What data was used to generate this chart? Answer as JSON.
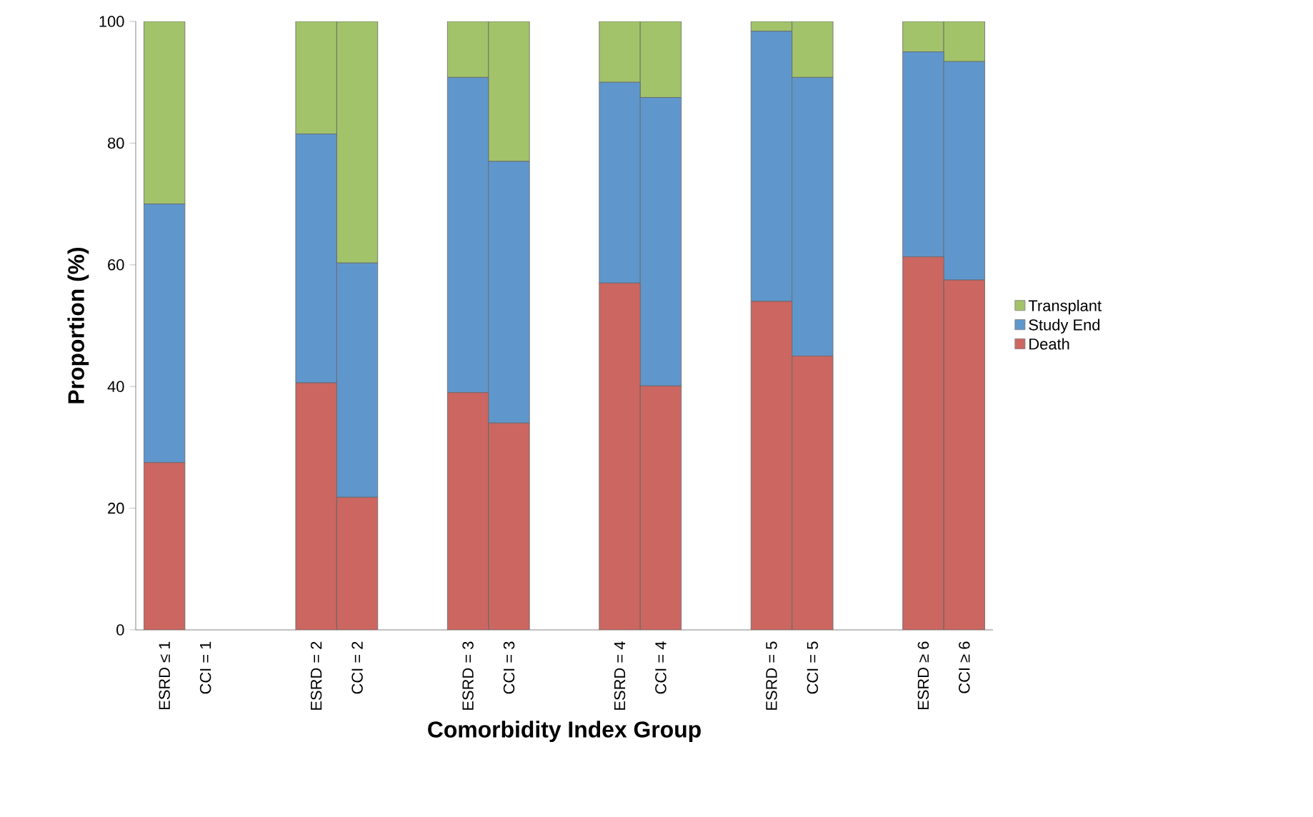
{
  "chart_data": {
    "type": "bar",
    "stacked": true,
    "xlabel": "Comorbidity Index Group",
    "ylabel": "Proportion (%)",
    "categories": [
      "ESRD ≤ 1",
      "CCI = 1",
      "ESRD = 2",
      "CCI = 2",
      "ESRD = 3",
      "CCI = 3",
      "ESRD = 4",
      "CCI = 4",
      "ESRD = 5",
      "CCI = 5",
      "ESRD ≥ 6",
      "CCI ≥ 6"
    ],
    "series": [
      {
        "name": "Death",
        "color": "#cc6661",
        "values": [
          27.5,
          null,
          40.6,
          21.8,
          39,
          34,
          57,
          40.1,
          54,
          45,
          61.3,
          57.5
        ]
      },
      {
        "name": "Study End",
        "color": "#5f97cd",
        "values": [
          42.5,
          null,
          40.9,
          38.5,
          51.8,
          43,
          33,
          47.4,
          44.4,
          45.8,
          33.7,
          35.9
        ]
      },
      {
        "name": "Transplant",
        "color": "#a2c36a",
        "values": [
          30,
          null,
          18.5,
          39.7,
          9.2,
          23,
          10,
          12.5,
          1.6,
          9.2,
          5,
          6.6
        ]
      }
    ],
    "ylim": [
      0,
      100
    ],
    "yticks": [
      0,
      20,
      40,
      60,
      80,
      100
    ],
    "legend": "right"
  }
}
